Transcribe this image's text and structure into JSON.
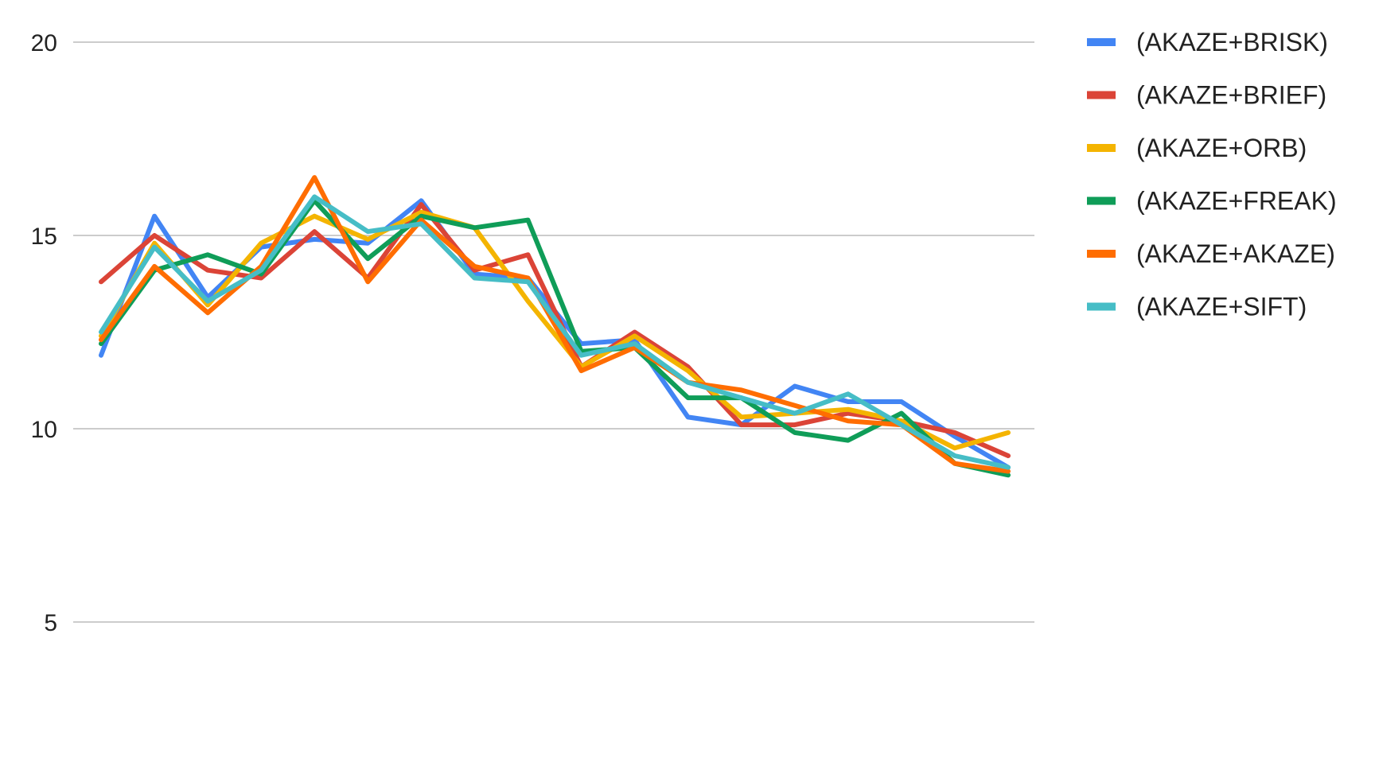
{
  "chart_data": {
    "type": "line",
    "title": "",
    "xlabel": "",
    "ylabel": "",
    "ylim": [
      5,
      20
    ],
    "yticks": [
      5,
      10,
      15,
      20
    ],
    "grid": true,
    "legend_position": "right",
    "x": [
      1,
      2,
      3,
      4,
      5,
      6,
      7,
      8,
      9,
      10,
      11,
      12,
      13,
      14,
      15,
      16,
      17,
      18
    ],
    "series": [
      {
        "name": "(AKAZE+BRISK)",
        "color": "#4285F4",
        "values": [
          11.9,
          15.5,
          13.4,
          14.7,
          14.9,
          14.8,
          15.9,
          14.0,
          13.9,
          12.2,
          12.3,
          10.3,
          10.1,
          11.1,
          10.7,
          10.7,
          9.8,
          9.0
        ]
      },
      {
        "name": "(AKAZE+BRIEF)",
        "color": "#DB4437",
        "values": [
          13.8,
          15.0,
          14.1,
          13.9,
          15.1,
          13.9,
          15.8,
          14.1,
          14.5,
          11.6,
          12.5,
          11.6,
          10.1,
          10.1,
          10.4,
          10.2,
          9.9,
          9.3
        ]
      },
      {
        "name": "(AKAZE+ORB)",
        "color": "#F4B400",
        "values": [
          12.4,
          14.8,
          13.2,
          14.8,
          15.5,
          14.9,
          15.6,
          15.2,
          13.3,
          11.6,
          12.4,
          11.5,
          10.3,
          10.4,
          10.5,
          10.2,
          9.5,
          9.9
        ]
      },
      {
        "name": "(AKAZE+FREAK)",
        "color": "#0F9D58",
        "values": [
          12.2,
          14.1,
          14.5,
          14.0,
          15.9,
          14.4,
          15.5,
          15.2,
          15.4,
          12.0,
          12.1,
          10.8,
          10.8,
          9.9,
          9.7,
          10.4,
          9.1,
          8.8
        ]
      },
      {
        "name": "(AKAZE+AKAZE)",
        "color": "#FF6D01",
        "values": [
          12.3,
          14.2,
          13.0,
          14.2,
          16.5,
          13.8,
          15.4,
          14.2,
          13.9,
          11.5,
          12.1,
          11.2,
          11.0,
          10.6,
          10.2,
          10.1,
          9.1,
          8.9
        ]
      },
      {
        "name": "(AKAZE+SIFT)",
        "color": "#46BDC6",
        "values": [
          12.5,
          14.7,
          13.3,
          14.1,
          16.0,
          15.1,
          15.3,
          13.9,
          13.8,
          11.9,
          12.2,
          11.2,
          10.8,
          10.4,
          10.9,
          10.1,
          9.3,
          9.0
        ]
      }
    ]
  }
}
